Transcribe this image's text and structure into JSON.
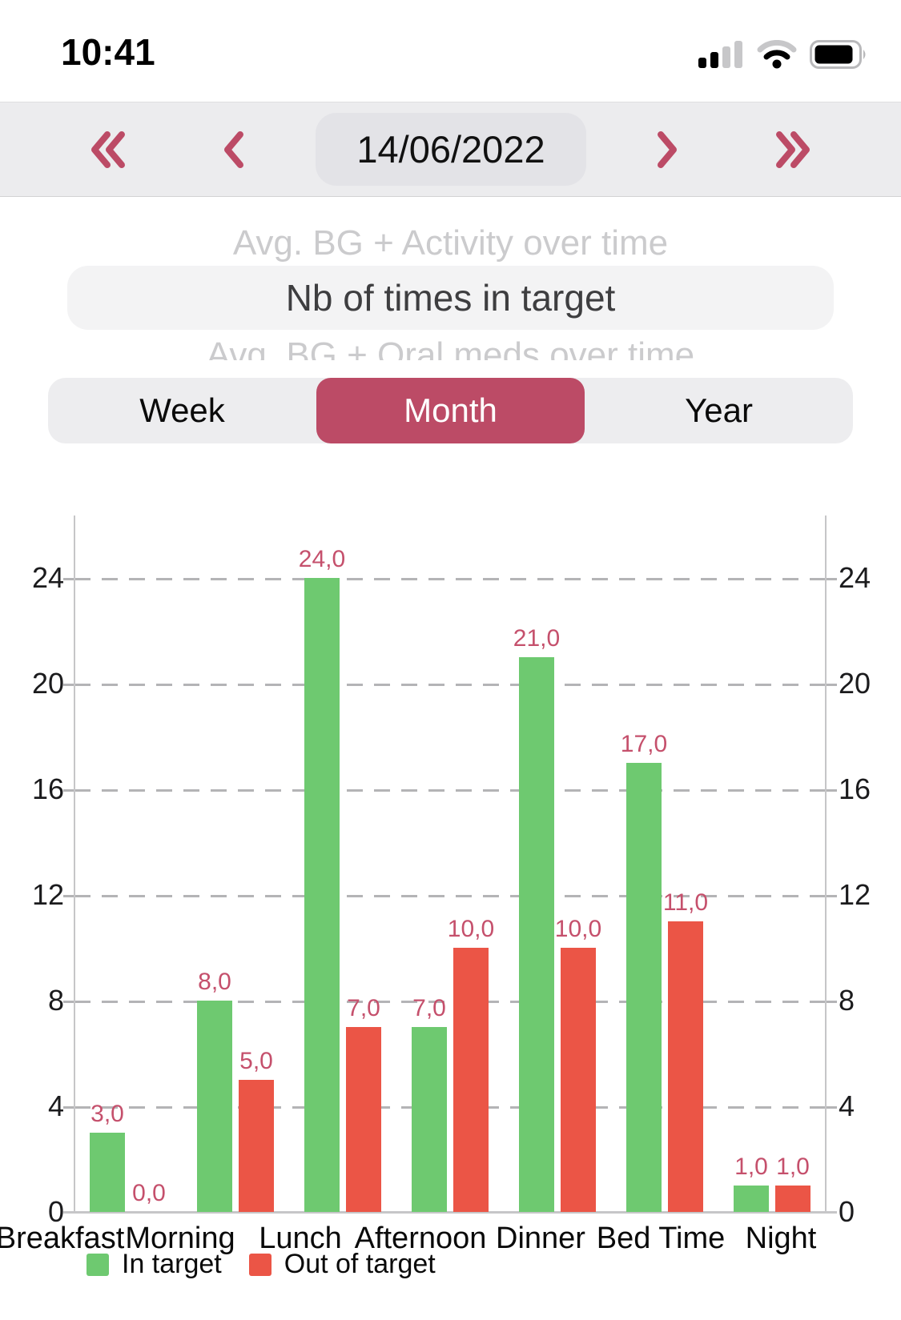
{
  "status_bar": {
    "time": "10:41",
    "icons": [
      "cellular-signal-icon",
      "wifi-icon",
      "battery-icon"
    ]
  },
  "date_nav": {
    "date": "14/06/2022",
    "icons": [
      "double-chevron-left-icon",
      "chevron-left-icon",
      "chevron-right-icon",
      "double-chevron-right-icon"
    ]
  },
  "metric_picker": {
    "item_above": "Avg. BG + Activity over time",
    "selected": "Nb of times in target",
    "item_below": "Avg. BG + Oral meds over time"
  },
  "range_tabs": {
    "options": [
      "Week",
      "Month",
      "Year"
    ],
    "selected": "Month"
  },
  "chart_data": {
    "type": "bar",
    "title": "Nb of times in target",
    "categories": [
      "Breakfast",
      "Morning",
      "Lunch",
      "Afternoon",
      "Dinner",
      "Bed Time",
      "Night"
    ],
    "series": [
      {
        "name": "In target",
        "color": "#6EC970",
        "values": [
          3,
          8,
          24,
          7,
          21,
          17,
          1
        ]
      },
      {
        "name": "Out of target",
        "color": "#EB5546",
        "values": [
          0,
          5,
          7,
          10,
          10,
          11,
          1
        ]
      }
    ],
    "value_label_format": "one-decimal-comma",
    "y_ticks": [
      0,
      4,
      8,
      12,
      16,
      20,
      24
    ],
    "ylim": [
      0,
      26.4
    ],
    "dual_value_axis": true,
    "grid": "dashed-horizontal",
    "legend_position": "bottom-left"
  },
  "colors": {
    "accent": "#BC4B66",
    "in_target": "#6EC970",
    "out_of_target": "#EB5546",
    "value_label": "#C5506C",
    "nav_bg": "#ECECEE",
    "date_pill_bg": "#E3E3E7",
    "picker_pill_bg": "#F3F3F4",
    "segmented_bg": "#EDEDEF",
    "gridline": "#B4B4B6",
    "axis_line": "#C6C6C8",
    "faded_text": "#CBCBCD"
  }
}
